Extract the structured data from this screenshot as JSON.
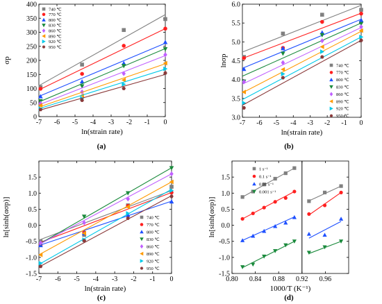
{
  "figure": {
    "panels": [
      {
        "label": "(a)"
      },
      {
        "label": "(b)"
      },
      {
        "label": "(c)"
      },
      {
        "label": "(d)"
      }
    ]
  },
  "chart_data": [
    {
      "panel": "(a)",
      "type": "scatter",
      "xlabel": "ln(strain rate)",
      "ylabel": "σp",
      "xlim": [
        -7,
        0
      ],
      "xticks": [
        -7,
        -6,
        -5,
        -4,
        -3,
        -2,
        -1,
        0
      ],
      "ylim": [
        0,
        400
      ],
      "yticks": [
        0,
        50,
        100,
        150,
        200,
        250,
        300,
        350,
        400
      ],
      "legend_position": "top-left",
      "x": [
        -6.91,
        -4.61,
        -2.3,
        0
      ],
      "series": [
        {
          "name": "740 ℃",
          "color": "#808080",
          "marker": "square",
          "values": [
            105,
            185,
            308,
            347
          ],
          "fit": [
            110,
            363
          ]
        },
        {
          "name": "770 ℃",
          "color": "#ff2020",
          "marker": "circle",
          "values": [
            99,
            152,
            252,
            313
          ],
          "fit": [
            95,
            313
          ]
        },
        {
          "name": "800 ℃",
          "color": "#1e50ff",
          "marker": "triangle-up",
          "values": [
            72,
            125,
            190,
            265
          ],
          "fit": [
            72,
            261
          ]
        },
        {
          "name": "830 ℃",
          "color": "#1a8a3c",
          "marker": "triangle-down",
          "values": [
            55,
            108,
            180,
            240
          ],
          "fit": [
            52,
            242
          ]
        },
        {
          "name": "860 ℃",
          "color": "#c060ff",
          "marker": "diamond",
          "values": [
            47,
            88,
            153,
            220
          ],
          "fit": [
            42,
            217
          ]
        },
        {
          "name": "890 ℃",
          "color": "#ff9a00",
          "marker": "triangle-left",
          "values": [
            40,
            75,
            130,
            190
          ],
          "fit": [
            34,
            188
          ]
        },
        {
          "name": "920 ℃",
          "color": "#00c8e8",
          "marker": "triangle-right",
          "values": [
            28,
            65,
            115,
            170
          ],
          "fit": [
            28,
            169
          ]
        },
        {
          "name": "950 ℃",
          "color": "#8a3a3a",
          "marker": "hexagon",
          "values": [
            25,
            58,
            100,
            155
          ],
          "fit": [
            22,
            150
          ]
        }
      ]
    },
    {
      "panel": "(b)",
      "type": "scatter",
      "xlabel": "ln(strain rate)",
      "ylabel": "lnσp",
      "xlim": [
        -7,
        0
      ],
      "xticks": [
        -7,
        -6,
        -5,
        -4,
        -3,
        -2,
        -1,
        0
      ],
      "ylim": [
        3.0,
        6.0
      ],
      "yticks": [
        3.0,
        3.5,
        4.0,
        4.5,
        5.0,
        5.5,
        6.0
      ],
      "legend_position": "right",
      "x": [
        -6.91,
        -4.61,
        -2.3,
        0
      ],
      "series": [
        {
          "name": "740 ℃",
          "color": "#808080",
          "marker": "square",
          "values": [
            4.6,
            5.22,
            5.72,
            5.85
          ],
          "fit": [
            4.73,
            5.97
          ]
        },
        {
          "name": "770 ℃",
          "color": "#ff2020",
          "marker": "circle",
          "values": [
            4.57,
            4.84,
            5.53,
            5.75
          ],
          "fit": [
            4.56,
            5.76
          ]
        },
        {
          "name": "800 ℃",
          "color": "#1e50ff",
          "marker": "triangle-up",
          "values": [
            4.28,
            4.83,
            5.25,
            5.58
          ],
          "fit": [
            4.3,
            5.6
          ]
        },
        {
          "name": "830 ℃",
          "color": "#1a8a3c",
          "marker": "triangle-down",
          "values": [
            3.95,
            4.69,
            5.18,
            5.48
          ],
          "fit": [
            4.09,
            5.5
          ]
        },
        {
          "name": "860 ℃",
          "color": "#c060ff",
          "marker": "diamond",
          "values": [
            3.94,
            4.45,
            5.03,
            5.4
          ],
          "fit": [
            3.88,
            5.38
          ]
        },
        {
          "name": "890 ℃",
          "color": "#ff9a00",
          "marker": "triangle-left",
          "values": [
            3.67,
            4.27,
            4.87,
            5.3
          ],
          "fit": [
            3.65,
            5.28
          ]
        },
        {
          "name": "920 ℃",
          "color": "#00c8e8",
          "marker": "triangle-right",
          "values": [
            3.38,
            4.15,
            4.74,
            5.13
          ],
          "fit": [
            3.47,
            5.13
          ]
        },
        {
          "name": "950 ℃",
          "color": "#8a3a3a",
          "marker": "hexagon",
          "values": [
            3.25,
            4.05,
            4.6,
            5.04
          ],
          "fit": [
            3.32,
            5.04
          ]
        }
      ]
    },
    {
      "panel": "(c)",
      "type": "scatter",
      "xlabel": "ln(strain rate)",
      "ylabel": "ln[sinh(ασp)]",
      "xlim": [
        -7,
        0
      ],
      "xticks": [
        -7,
        -6,
        -5,
        -4,
        -3,
        -2,
        -1,
        0
      ],
      "ylim": [
        -1.5,
        2.0
      ],
      "yticks": [
        -1.5,
        -1.0,
        -0.5,
        0.0,
        0.5,
        1.0,
        1.5
      ],
      "legend_position": "bottom-right",
      "x": [
        -6.91,
        -4.61,
        -2.3,
        0
      ],
      "series": [
        {
          "name": "740 ℃",
          "color": "#808080",
          "marker": "square",
          "values": [
            -0.5,
            -0.3,
            0.62,
            1.2
          ],
          "fit": [
            -0.46,
            1.08
          ]
        },
        {
          "name": "770 ℃",
          "color": "#ff2020",
          "marker": "circle",
          "values": [
            -0.62,
            -0.22,
            0.6,
            1.02
          ],
          "fit": [
            -0.55,
            1.02
          ]
        },
        {
          "name": "800 ℃",
          "color": "#1e50ff",
          "marker": "triangle-up",
          "values": [
            -0.62,
            -0.25,
            0.32,
            0.74
          ],
          "fit": [
            -0.63,
            0.75
          ]
        },
        {
          "name": "830 ℃",
          "color": "#1a8a3c",
          "marker": "triangle-down",
          "values": [
            -0.58,
            0.27,
            1.0,
            1.78
          ],
          "fit": [
            -0.59,
            1.79
          ]
        },
        {
          "name": "860 ℃",
          "color": "#c060ff",
          "marker": "diamond",
          "values": [
            -0.55,
            0.08,
            0.82,
            1.6
          ],
          "fit": [
            -0.6,
            1.6
          ]
        },
        {
          "name": "890 ℃",
          "color": "#ff9a00",
          "marker": "triangle-left",
          "values": [
            -0.92,
            -0.25,
            0.57,
            1.35
          ],
          "fit": [
            -0.92,
            1.35
          ]
        },
        {
          "name": "920 ℃",
          "color": "#00c8e8",
          "marker": "triangle-right",
          "values": [
            -1.18,
            -0.45,
            0.37,
            1.08
          ],
          "fit": [
            -1.22,
            1.12
          ]
        },
        {
          "name": "950 ℃",
          "color": "#8a3a3a",
          "marker": "hexagon",
          "values": [
            -1.28,
            -0.48,
            0.22,
            0.9
          ],
          "fit": [
            -1.3,
            0.92
          ]
        }
      ]
    },
    {
      "panel": "(d)",
      "type": "scatter",
      "xlabel": "1000/T (K⁻¹)",
      "ylabel": "ln[sinh(ασp)]",
      "xlim": [
        0.8,
        1.0
      ],
      "xticks": [
        0.8,
        0.84,
        0.88,
        0.92,
        0.96
      ],
      "ylim": [
        -1.5,
        2.0
      ],
      "yticks": [
        -1.5,
        -1.0,
        -0.5,
        0.0,
        0.5,
        1.0,
        1.5
      ],
      "divider_x": 0.92,
      "legend_position": "top-left",
      "left_x": [
        0.818,
        0.836,
        0.855,
        0.874,
        0.892,
        0.907
      ],
      "right_x": [
        0.932,
        0.959,
        0.987
      ],
      "series": [
        {
          "name": "1 s⁻¹",
          "color": "#808080",
          "marker": "square",
          "left": [
            0.88,
            1.05,
            1.27,
            1.45,
            1.62,
            1.78
          ],
          "left_fit": [
            0.88,
            1.78
          ],
          "right": [
            0.75,
            1.02,
            1.22
          ],
          "right_fit": [
            0.76,
            1.22
          ]
        },
        {
          "name": "0.1 s⁻¹",
          "color": "#ff2020",
          "marker": "circle",
          "left": [
            0.2,
            0.37,
            0.55,
            0.73,
            0.85,
            1.05
          ],
          "left_fit": [
            0.2,
            1.05
          ],
          "right": [
            0.35,
            0.62,
            1.02
          ],
          "right_fit": [
            0.32,
            1.02
          ]
        },
        {
          "name": "0.01 s⁻¹",
          "color": "#1e50ff",
          "marker": "triangle-up",
          "left": [
            -0.47,
            -0.33,
            -0.18,
            -0.03,
            0.08,
            0.25
          ],
          "left_fit": [
            -0.47,
            0.26
          ],
          "right": [
            -0.27,
            -0.3,
            0.2
          ],
          "right_fit": [
            -0.4,
            0.12
          ]
        },
        {
          "name": "0.001 s⁻¹",
          "color": "#1a8a3c",
          "marker": "triangle-down",
          "left": [
            -1.3,
            -1.22,
            -0.97,
            -0.8,
            -0.62,
            -0.5
          ],
          "left_fit": [
            -1.32,
            -0.5
          ],
          "right": [
            -0.85,
            -0.68,
            -0.5
          ],
          "right_fit": [
            -0.88,
            -0.5
          ]
        }
      ]
    }
  ]
}
